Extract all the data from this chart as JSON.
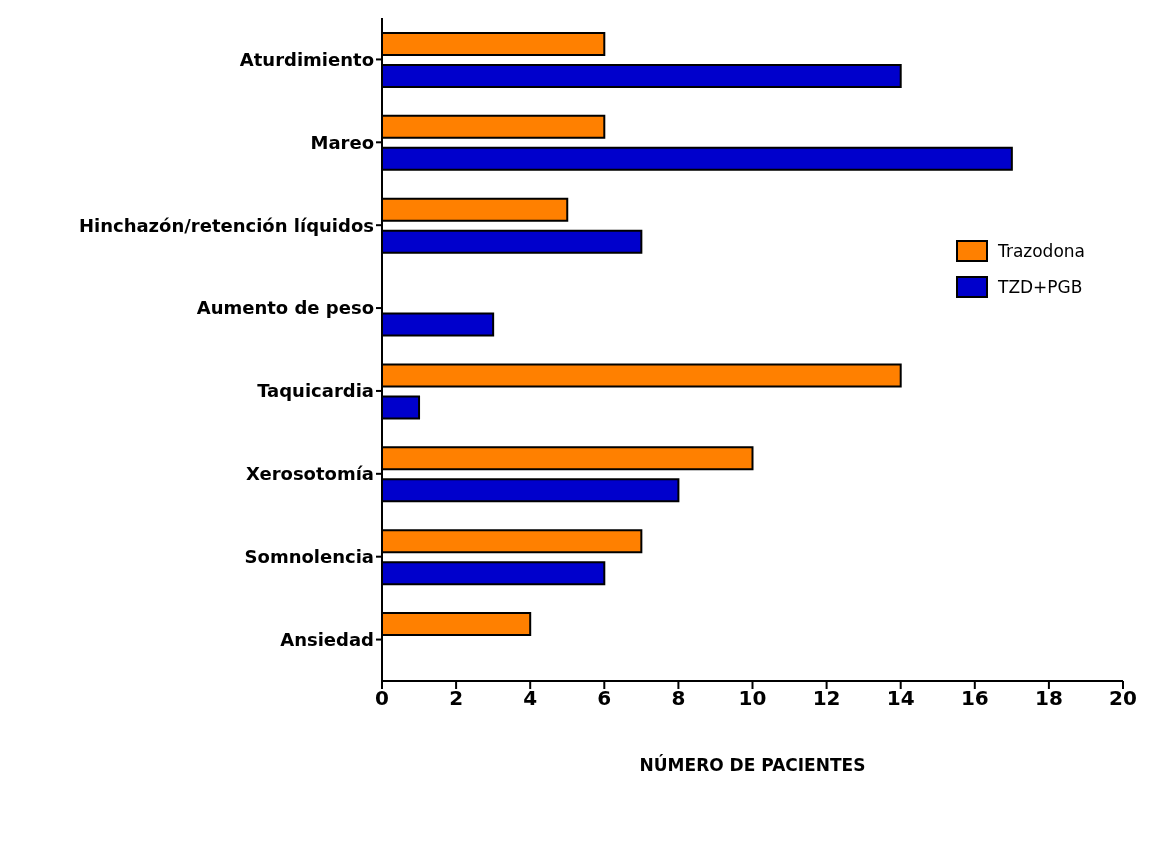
{
  "chart_data": {
    "type": "bar",
    "orientation": "horizontal",
    "xlabel": "NÚMERO DE PACIENTES",
    "categories": [
      "Aturdimiento",
      "Mareo",
      "Hinchazón/retención líquidos",
      "Aumento de peso",
      "Taquicardia",
      "Xerosotomía",
      "Somnolencia",
      "Ansiedad"
    ],
    "series": [
      {
        "name": "Trazodona",
        "color": "#ff8000",
        "values": [
          6,
          6,
          5,
          null,
          14,
          10,
          7,
          4
        ]
      },
      {
        "name": "TZD+PGB",
        "color": "#0000cc",
        "values": [
          14,
          17,
          7,
          3,
          1,
          8,
          6,
          null
        ]
      }
    ],
    "xlim": [
      0,
      20
    ],
    "xticks": [
      0,
      2,
      4,
      6,
      8,
      10,
      12,
      14,
      16,
      18,
      20
    ],
    "grid": false,
    "legend": "right"
  }
}
